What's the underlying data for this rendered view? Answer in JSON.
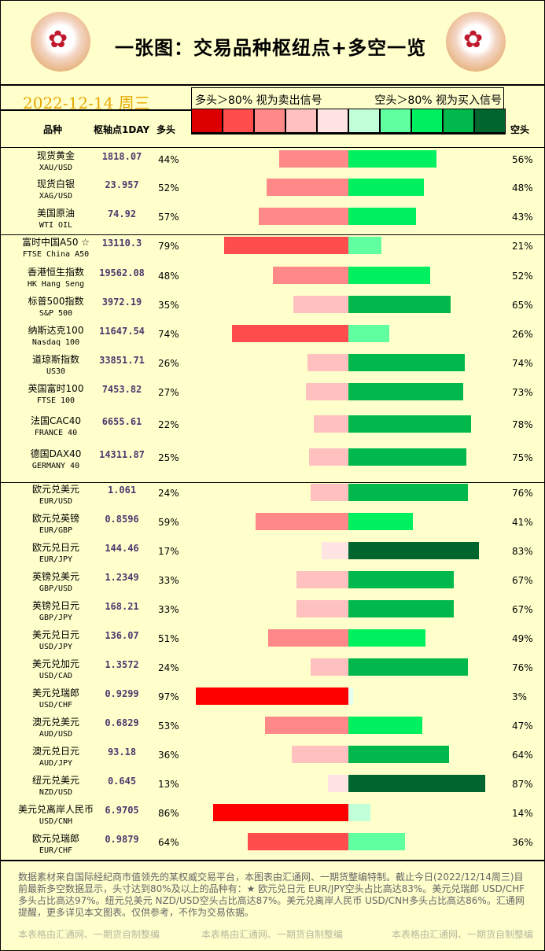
{
  "header": {
    "title": "一张图：交易品种枢纽点+多空一览",
    "date": "2022-12-14 周三",
    "legend_left": "多头＞80% 视为卖出信号",
    "legend_right": "空头＞80% 视为买入信号",
    "swatch_colors": [
      "#dd0000",
      "#ff4c4c",
      "#ff8888",
      "#ffc0c0",
      "#ffe4e4",
      "#c0ffd8",
      "#60ffa0",
      "#00f060",
      "#00b84c",
      "#006630"
    ]
  },
  "columns": {
    "name": "品种",
    "pivot": "枢轴点1DAY",
    "long": "多头",
    "short": "空头"
  },
  "rows": [
    {
      "name": "现货黄金",
      "code": "XAU/USD",
      "pivot": "1818.07",
      "long": "44%",
      "short": "56%",
      "lv": 44,
      "sv": 56,
      "lc": "#ff8888",
      "sc": "#00f060"
    },
    {
      "name": "现货白银",
      "code": "XAG/USD",
      "pivot": "23.957",
      "long": "52%",
      "short": "48%",
      "lv": 52,
      "sv": 48,
      "lc": "#ff8888",
      "sc": "#00f060"
    },
    {
      "name": "美国原油",
      "code": "WTI OIL",
      "pivot": "74.92",
      "long": "57%",
      "short": "43%",
      "lv": 57,
      "sv": 43,
      "lc": "#ff8888",
      "sc": "#00f060"
    },
    {
      "name": "富时中国A50 ☆",
      "code": "FTSE China A50",
      "pivot": "13110.3",
      "long": "79%",
      "short": "21%",
      "lv": 79,
      "sv": 21,
      "lc": "#ff4c4c",
      "sc": "#60ffa0"
    },
    {
      "name": "香港恒生指数",
      "code": "HK Hang Seng",
      "pivot": "19562.08",
      "long": "48%",
      "short": "52%",
      "lv": 48,
      "sv": 52,
      "lc": "#ff8888",
      "sc": "#00f060"
    },
    {
      "name": "标普500指数",
      "code": "S&P 500",
      "pivot": "3972.19",
      "long": "35%",
      "short": "65%",
      "lv": 35,
      "sv": 65,
      "lc": "#ffc0c0",
      "sc": "#00b84c"
    },
    {
      "name": "纳斯达克100",
      "code": "Nasdaq 100",
      "pivot": "11647.54",
      "long": "74%",
      "short": "26%",
      "lv": 74,
      "sv": 26,
      "lc": "#ff4c4c",
      "sc": "#60ffa0"
    },
    {
      "name": "道琼斯指数",
      "code": "US30",
      "pivot": "33851.71",
      "long": "26%",
      "short": "74%",
      "lv": 26,
      "sv": 74,
      "lc": "#ffc0c0",
      "sc": "#00b84c"
    },
    {
      "name": "英国富时100",
      "code": "FTSE 100",
      "pivot": "7453.82",
      "long": "27%",
      "short": "73%",
      "lv": 27,
      "sv": 73,
      "lc": "#ffc0c0",
      "sc": "#00b84c"
    },
    {
      "name": "法国CAC40",
      "code": "FRANCE 40",
      "pivot": "6655.61",
      "long": "22%",
      "short": "78%",
      "lv": 22,
      "sv": 78,
      "lc": "#ffc0c0",
      "sc": "#00b84c"
    },
    {
      "name": "德国DAX40",
      "code": "GERMANY 40",
      "pivot": "14311.87",
      "long": "25%",
      "short": "75%",
      "lv": 25,
      "sv": 75,
      "lc": "#ffc0c0",
      "sc": "#00b84c"
    },
    {
      "name": "欧元兑美元",
      "code": "EUR/USD",
      "pivot": "1.061",
      "long": "24%",
      "short": "76%",
      "lv": 24,
      "sv": 76,
      "lc": "#ffc0c0",
      "sc": "#00b84c"
    },
    {
      "name": "欧元兑英镑",
      "code": "EUR/GBP",
      "pivot": "0.8596",
      "long": "59%",
      "short": "41%",
      "lv": 59,
      "sv": 41,
      "lc": "#ff8888",
      "sc": "#00f060"
    },
    {
      "name": "欧元兑日元",
      "code": "EUR/JPY",
      "pivot": "144.46",
      "long": "17%",
      "short": "83%",
      "lv": 17,
      "sv": 83,
      "lc": "#ffe4e4",
      "sc": "#006630"
    },
    {
      "name": "英镑兑美元",
      "code": "GBP/USD",
      "pivot": "1.2349",
      "long": "33%",
      "short": "67%",
      "lv": 33,
      "sv": 67,
      "lc": "#ffc0c0",
      "sc": "#00b84c"
    },
    {
      "name": "英镑兑日元",
      "code": "GBP/JPY",
      "pivot": "168.21",
      "long": "33%",
      "short": "67%",
      "lv": 33,
      "sv": 67,
      "lc": "#ffc0c0",
      "sc": "#00b84c"
    },
    {
      "name": "美元兑日元",
      "code": "USD/JPY",
      "pivot": "136.07",
      "long": "51%",
      "short": "49%",
      "lv": 51,
      "sv": 49,
      "lc": "#ff8888",
      "sc": "#00f060"
    },
    {
      "name": "美元兑加元",
      "code": "USD/CAD",
      "pivot": "1.3572",
      "long": "24%",
      "short": "76%",
      "lv": 24,
      "sv": 76,
      "lc": "#ffc0c0",
      "sc": "#00b84c"
    },
    {
      "name": "美元兑瑞郎",
      "code": "USD/CHF",
      "pivot": "0.9299",
      "long": "97%",
      "short": "3%",
      "lv": 97,
      "sv": 3,
      "lc": "#ff0000",
      "sc": "#e0fff0"
    },
    {
      "name": "澳元兑美元",
      "code": "AUD/USD",
      "pivot": "0.6829",
      "long": "53%",
      "short": "47%",
      "lv": 53,
      "sv": 47,
      "lc": "#ff8888",
      "sc": "#00f060"
    },
    {
      "name": "澳元兑日元",
      "code": "AUD/JPY",
      "pivot": "93.18",
      "long": "36%",
      "short": "64%",
      "lv": 36,
      "sv": 64,
      "lc": "#ffc0c0",
      "sc": "#00b84c"
    },
    {
      "name": "纽元兑美元",
      "code": "NZD/USD",
      "pivot": "0.645",
      "long": "13%",
      "short": "87%",
      "lv": 13,
      "sv": 87,
      "lc": "#ffe4e4",
      "sc": "#006630"
    },
    {
      "name": "美元兑离岸人民币",
      "code": "USD/CNH",
      "pivot": "6.9705",
      "long": "86%",
      "short": "14%",
      "lv": 86,
      "sv": 14,
      "lc": "#ff0000",
      "sc": "#c0ffd8"
    },
    {
      "name": "欧元兑瑞郎",
      "code": "EUR/CHF",
      "pivot": "0.9879",
      "long": "64%",
      "short": "36%",
      "lv": 64,
      "sv": 36,
      "lc": "#ff4c4c",
      "sc": "#60ffa0"
    }
  ],
  "footer": {
    "note": "数据素材来自国际经纪商市值领先的某权威交易平台，本图表由汇通网、一期货整编特制。截止今日(2022/12/14周三)目前最新多空数据显示，头寸达到80%及以上的品种有：★ 欧元兑日元 EUR/JPY空头占比高达83%。美元兑瑞郎 USD/CHF多头占比高达97%。纽元兑美元 NZD/USD空头占比高达87%。美元兑离岸人民币 USD/CNH多头占比高达86%。汇通网提醒，更多详见本文图表。仅供参考，不作为交易依据。",
    "watermark": "本表格由汇通网、一期货自制整编"
  }
}
